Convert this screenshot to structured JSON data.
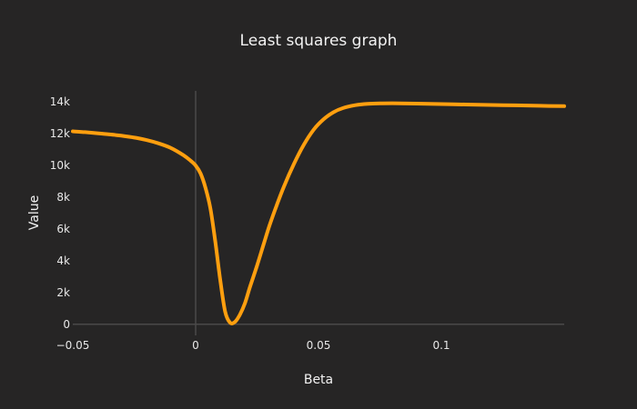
{
  "chart_data": {
    "type": "line",
    "title": "Least squares graph",
    "xlabel": "Beta",
    "ylabel": "Value",
    "xlim": [
      -0.05,
      0.15
    ],
    "ylim": [
      -700,
      14700
    ],
    "x_ticks": [
      {
        "value": -0.05,
        "label": "−0.05"
      },
      {
        "value": 0,
        "label": "0"
      },
      {
        "value": 0.05,
        "label": "0.05"
      },
      {
        "value": 0.1,
        "label": "0.1"
      }
    ],
    "y_ticks": [
      {
        "value": 0,
        "label": "0"
      },
      {
        "value": 2000,
        "label": "2k"
      },
      {
        "value": 4000,
        "label": "4k"
      },
      {
        "value": 6000,
        "label": "6k"
      },
      {
        "value": 8000,
        "label": "8k"
      },
      {
        "value": 10000,
        "label": "10k"
      },
      {
        "value": 12000,
        "label": "12k"
      },
      {
        "value": 14000,
        "label": "14k"
      }
    ],
    "grid": false,
    "zero_line_x": true,
    "zero_line_y": true,
    "legend": "none",
    "colors": {
      "background": "#262525",
      "series": "#ff9f0f"
    },
    "series": [
      {
        "x": [
          -0.05,
          -0.045,
          -0.04,
          -0.035,
          -0.03,
          -0.025,
          -0.02,
          -0.015,
          -0.01,
          -0.005,
          -0.002,
          0,
          0.002,
          0.004,
          0.006,
          0.008,
          0.01,
          0.012,
          0.014,
          0.016,
          0.018,
          0.02,
          0.022,
          0.025,
          0.028,
          0.03,
          0.033,
          0.036,
          0.04,
          0.044,
          0.048,
          0.052,
          0.056,
          0.06,
          0.065,
          0.07,
          0.075,
          0.08,
          0.09,
          0.1,
          0.11,
          0.12,
          0.13,
          0.14,
          0.15
        ],
        "y": [
          12150,
          12100,
          12030,
          11960,
          11870,
          11760,
          11600,
          11390,
          11100,
          10650,
          10300,
          10000,
          9500,
          8600,
          7300,
          5200,
          2800,
          800,
          100,
          150,
          600,
          1300,
          2300,
          3700,
          5200,
          6200,
          7500,
          8700,
          10100,
          11300,
          12250,
          12900,
          13350,
          13620,
          13800,
          13880,
          13910,
          13920,
          13900,
          13870,
          13840,
          13810,
          13790,
          13760,
          13740
        ]
      }
    ]
  }
}
